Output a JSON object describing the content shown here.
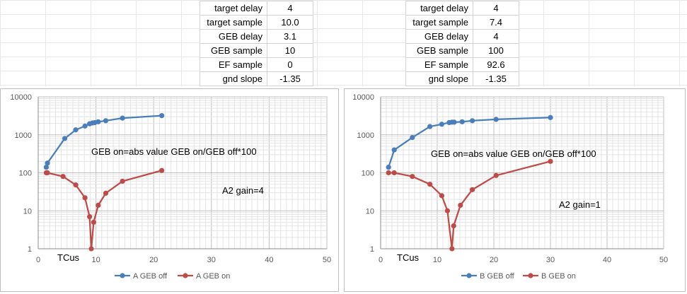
{
  "params_left": {
    "rows": [
      {
        "label": "target delay",
        "value": "4"
      },
      {
        "label": "target sample",
        "value": "10.0"
      },
      {
        "label": "GEB delay",
        "value": "3.1"
      },
      {
        "label": "GEB sample",
        "value": "10"
      },
      {
        "label": "EF sample",
        "value": "0"
      },
      {
        "label": "gnd slope",
        "value": "-1.35"
      }
    ]
  },
  "params_right": {
    "rows": [
      {
        "label": "target delay",
        "value": "4"
      },
      {
        "label": "target sample",
        "value": "7.4"
      },
      {
        "label": "GEB delay",
        "value": "4"
      },
      {
        "label": "GEB sample",
        "value": "100"
      },
      {
        "label": "EF sample",
        "value": "92.6"
      },
      {
        "label": "gnd slope",
        "value": "-1.35"
      }
    ]
  },
  "chart_data": [
    {
      "type": "line",
      "log_y": true,
      "xlim": [
        0,
        50
      ],
      "ylim": [
        1,
        10000
      ],
      "x_ticks": [
        "0",
        "10",
        "20",
        "30",
        "40",
        "50"
      ],
      "y_ticks": [
        "1",
        "10",
        "100",
        "1000",
        "10000"
      ],
      "xlabel": "TCus",
      "legend_position": "bottom",
      "colors": {
        "series1": "#4a7ebb",
        "series2": "#be4b48"
      },
      "annotations": [
        {
          "text": "GEB on=abs value GEB on/GEB off*100"
        },
        {
          "text": "A2 gain=4"
        }
      ],
      "series": [
        {
          "name": "A  GEB off",
          "x": [
            1.4,
            1.6,
            4.6,
            6.5,
            8.1,
            8.9,
            9.4,
            9.8,
            10.4,
            11.7,
            14.6,
            21.4
          ],
          "y": [
            140,
            180,
            800,
            1350,
            1700,
            1950,
            2050,
            2100,
            2200,
            2350,
            2750,
            3200
          ]
        },
        {
          "name": "A  GEB on",
          "x": [
            1.4,
            1.6,
            4.3,
            6.5,
            8.1,
            8.9,
            9.2,
            9.6,
            10.4,
            11.7,
            14.6,
            21.4
          ],
          "y": [
            100,
            100,
            80,
            48,
            22,
            7,
            1,
            5,
            14,
            29,
            60,
            115
          ]
        }
      ]
    },
    {
      "type": "line",
      "log_y": true,
      "xlim": [
        0,
        50
      ],
      "ylim": [
        1,
        10000
      ],
      "x_ticks": [
        "0",
        "10",
        "20",
        "30",
        "40",
        "50"
      ],
      "y_ticks": [
        "1",
        "10",
        "100",
        "1000",
        "10000"
      ],
      "xlabel": "TCus",
      "legend_position": "bottom",
      "colors": {
        "series1": "#4a7ebb",
        "series2": "#be4b48"
      },
      "annotations": [
        {
          "text": "GEB on=abs value GEB on/GEB off*100"
        },
        {
          "text": "A2 gain=1"
        }
      ],
      "series": [
        {
          "name": "B  GEB off",
          "x": [
            1.4,
            2.4,
            5.6,
            8.7,
            10.8,
            12.1,
            12.6,
            13.0,
            14.4,
            16.2,
            20.4,
            30.0
          ],
          "y": [
            140,
            400,
            850,
            1650,
            1900,
            2100,
            2150,
            2150,
            2200,
            2350,
            2550,
            2850
          ]
        },
        {
          "name": "B  GEB on",
          "x": [
            1.4,
            2.4,
            5.6,
            8.7,
            10.8,
            11.8,
            12.6,
            12.9,
            14.1,
            16.2,
            20.4,
            30.0
          ],
          "y": [
            100,
            100,
            80,
            50,
            25,
            10,
            1,
            4,
            14,
            36,
            85,
            200
          ]
        }
      ]
    }
  ]
}
